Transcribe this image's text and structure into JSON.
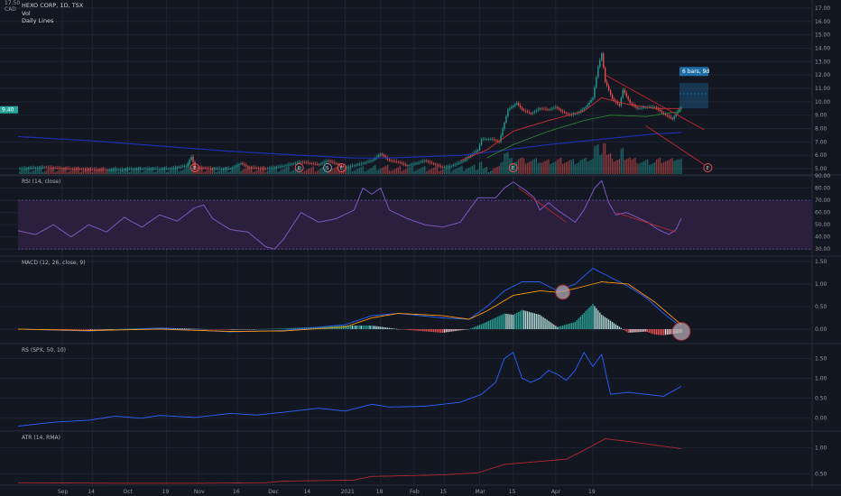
{
  "header": {
    "symbol": "HEXO CORP, 1D, TSX",
    "currency": "CAD",
    "top_price": "17.50",
    "vol_label": "Vol",
    "lines_label": "Daily Lines",
    "price_tag": "9.40",
    "projection_label": "6 bars, 9d",
    "earnings_marker": "E",
    "split_marker": "S"
  },
  "chart_data": [
    {
      "type": "candlestick",
      "ylim": [
        4.6,
        17.6
      ],
      "yticks": [
        5,
        6,
        7,
        8,
        9,
        10,
        11,
        12,
        13,
        14,
        15,
        16,
        17
      ],
      "ytick_labels": [
        "5.00",
        "6.00",
        "7.00",
        "8.00",
        "9.00",
        "10.00",
        "11.00",
        "12.00",
        "13.00",
        "14.00",
        "15.00",
        "16.00",
        "17.00"
      ],
      "close_anchors": [
        [
          0,
          5.0
        ],
        [
          15,
          5.1
        ],
        [
          30,
          5.0
        ],
        [
          50,
          4.9
        ],
        [
          70,
          5.0
        ],
        [
          85,
          5.0
        ],
        [
          95,
          5.2
        ],
        [
          98,
          5.9
        ],
        [
          100,
          5.1
        ],
        [
          110,
          5.0
        ],
        [
          120,
          5.0
        ],
        [
          126,
          5.4
        ],
        [
          130,
          5.1
        ],
        [
          140,
          5.0
        ],
        [
          150,
          5.2
        ],
        [
          160,
          5.5
        ],
        [
          170,
          5.3
        ],
        [
          175,
          5.6
        ],
        [
          185,
          5.1
        ],
        [
          192,
          5.3
        ],
        [
          200,
          5.6
        ],
        [
          205,
          6.1
        ],
        [
          210,
          5.6
        ],
        [
          215,
          5.5
        ],
        [
          220,
          5.2
        ],
        [
          230,
          5.6
        ],
        [
          240,
          5.1
        ],
        [
          245,
          5.2
        ],
        [
          252,
          5.6
        ],
        [
          260,
          6.4
        ],
        [
          262,
          7.2
        ],
        [
          268,
          7.2
        ],
        [
          272,
          7.0
        ],
        [
          277,
          9.4
        ],
        [
          282,
          9.9
        ],
        [
          285,
          9.4
        ],
        [
          290,
          9.1
        ],
        [
          295,
          9.5
        ],
        [
          300,
          9.4
        ],
        [
          304,
          9.6
        ],
        [
          307,
          9.3
        ],
        [
          312,
          9.0
        ],
        [
          317,
          9.2
        ],
        [
          321,
          9.6
        ],
        [
          325,
          10.3
        ],
        [
          328,
          12.6
        ],
        [
          330,
          13.6
        ],
        [
          332,
          11.5
        ],
        [
          336,
          10.2
        ],
        [
          340,
          9.7
        ],
        [
          342,
          10.9
        ],
        [
          346,
          9.9
        ],
        [
          350,
          9.5
        ],
        [
          356,
          9.6
        ],
        [
          360,
          9.6
        ],
        [
          365,
          9.1
        ],
        [
          370,
          8.7
        ],
        [
          373,
          9.3
        ],
        [
          375,
          9.6
        ]
      ],
      "sma_anchors": [
        [
          0,
          7.4
        ],
        [
          40,
          7.1
        ],
        [
          80,
          6.7
        ],
        [
          120,
          6.3
        ],
        [
          160,
          6.0
        ],
        [
          190,
          5.8
        ],
        [
          210,
          5.8
        ],
        [
          230,
          5.9
        ],
        [
          250,
          6.0
        ],
        [
          270,
          6.3
        ],
        [
          300,
          6.8
        ],
        [
          330,
          7.2
        ],
        [
          360,
          7.6
        ],
        [
          375,
          7.7
        ]
      ],
      "ema_red_anchors": [
        [
          250,
          5.6
        ],
        [
          265,
          6.4
        ],
        [
          280,
          7.8
        ],
        [
          300,
          8.6
        ],
        [
          320,
          9.3
        ],
        [
          330,
          10.3
        ],
        [
          345,
          9.8
        ],
        [
          360,
          9.5
        ],
        [
          375,
          9.5
        ]
      ],
      "ema_green_anchors": [
        [
          265,
          5.8
        ],
        [
          280,
          6.8
        ],
        [
          300,
          7.8
        ],
        [
          320,
          8.6
        ],
        [
          335,
          9.0
        ],
        [
          355,
          8.9
        ],
        [
          375,
          9.3
        ]
      ],
      "trend_lines": [
        [
          [
            332,
            12.0
          ],
          [
            388,
            7.9
          ]
        ],
        [
          [
            355,
            8.2
          ],
          [
            388,
            5.3
          ]
        ]
      ],
      "volume_max": 1.0
    },
    {
      "type": "line",
      "title": "RSI (14, close)",
      "ylim": [
        25,
        90
      ],
      "yticks": [
        30,
        40,
        50,
        60,
        70,
        80,
        90
      ],
      "ytick_labels": [
        "30.00",
        "40.00",
        "50.00",
        "60.00",
        "70.00",
        "80.00",
        "90.00"
      ],
      "band": [
        30,
        70
      ],
      "anchors": [
        [
          0,
          45
        ],
        [
          10,
          42
        ],
        [
          20,
          50
        ],
        [
          30,
          40
        ],
        [
          40,
          50
        ],
        [
          50,
          44
        ],
        [
          60,
          56
        ],
        [
          70,
          48
        ],
        [
          80,
          58
        ],
        [
          90,
          53
        ],
        [
          100,
          64
        ],
        [
          105,
          66
        ],
        [
          110,
          55
        ],
        [
          120,
          46
        ],
        [
          130,
          44
        ],
        [
          140,
          32
        ],
        [
          145,
          30
        ],
        [
          150,
          38
        ],
        [
          160,
          60
        ],
        [
          170,
          52
        ],
        [
          180,
          55
        ],
        [
          190,
          62
        ],
        [
          195,
          80
        ],
        [
          200,
          75
        ],
        [
          205,
          80
        ],
        [
          210,
          62
        ],
        [
          220,
          55
        ],
        [
          230,
          50
        ],
        [
          240,
          48
        ],
        [
          250,
          52
        ],
        [
          260,
          72
        ],
        [
          270,
          72
        ],
        [
          275,
          80
        ],
        [
          280,
          85
        ],
        [
          287,
          78
        ],
        [
          292,
          72
        ],
        [
          295,
          62
        ],
        [
          300,
          68
        ],
        [
          305,
          62
        ],
        [
          310,
          57
        ],
        [
          315,
          52
        ],
        [
          320,
          62
        ],
        [
          326,
          80
        ],
        [
          330,
          86
        ],
        [
          334,
          68
        ],
        [
          338,
          58
        ],
        [
          344,
          60
        ],
        [
          350,
          56
        ],
        [
          356,
          52
        ],
        [
          362,
          46
        ],
        [
          368,
          42
        ],
        [
          372,
          46
        ],
        [
          375,
          55
        ]
      ]
    },
    {
      "type": "line",
      "title": "MACD (12, 26, close, 9)",
      "ylim": [
        -0.3,
        1.6
      ],
      "yticks": [
        0,
        0.5,
        1.0,
        1.5
      ],
      "ytick_labels": [
        "0.00",
        "0.50",
        "1.00",
        "1.50"
      ],
      "macd_anchors": [
        [
          0,
          0.0
        ],
        [
          40,
          -0.04
        ],
        [
          80,
          0.02
        ],
        [
          120,
          -0.06
        ],
        [
          150,
          -0.03
        ],
        [
          185,
          0.1
        ],
        [
          200,
          0.3
        ],
        [
          215,
          0.35
        ],
        [
          240,
          0.25
        ],
        [
          255,
          0.22
        ],
        [
          265,
          0.5
        ],
        [
          275,
          0.85
        ],
        [
          285,
          1.05
        ],
        [
          295,
          1.05
        ],
        [
          305,
          0.85
        ],
        [
          315,
          1.0
        ],
        [
          325,
          1.35
        ],
        [
          335,
          1.15
        ],
        [
          345,
          0.95
        ],
        [
          355,
          0.7
        ],
        [
          365,
          0.35
        ],
        [
          375,
          0.05
        ]
      ],
      "signal_anchors": [
        [
          0,
          0.0
        ],
        [
          40,
          -0.03
        ],
        [
          80,
          0.0
        ],
        [
          120,
          -0.05
        ],
        [
          150,
          -0.04
        ],
        [
          185,
          0.05
        ],
        [
          200,
          0.25
        ],
        [
          215,
          0.35
        ],
        [
          240,
          0.3
        ],
        [
          255,
          0.22
        ],
        [
          265,
          0.4
        ],
        [
          280,
          0.75
        ],
        [
          295,
          0.85
        ],
        [
          305,
          0.82
        ],
        [
          315,
          0.9
        ],
        [
          330,
          1.05
        ],
        [
          345,
          1.0
        ],
        [
          360,
          0.6
        ],
        [
          375,
          0.1
        ]
      ],
      "circles": [
        [
          308,
          0.82
        ],
        [
          375,
          -0.05
        ]
      ]
    },
    {
      "type": "line",
      "title": "RS (SPX, 50, 10)",
      "ylim": [
        -0.3,
        1.85
      ],
      "yticks": [
        0,
        0.5,
        1.0,
        1.5
      ],
      "ytick_labels": [
        "0.00",
        "0.50",
        "1.00",
        "1.50"
      ],
      "anchors": [
        [
          0,
          -0.2
        ],
        [
          20,
          -0.1
        ],
        [
          40,
          -0.05
        ],
        [
          55,
          0.05
        ],
        [
          70,
          0.0
        ],
        [
          80,
          0.07
        ],
        [
          100,
          0.02
        ],
        [
          120,
          0.12
        ],
        [
          135,
          0.08
        ],
        [
          150,
          0.15
        ],
        [
          170,
          0.25
        ],
        [
          185,
          0.18
        ],
        [
          200,
          0.35
        ],
        [
          210,
          0.28
        ],
        [
          230,
          0.3
        ],
        [
          250,
          0.4
        ],
        [
          262,
          0.6
        ],
        [
          270,
          0.9
        ],
        [
          275,
          1.5
        ],
        [
          280,
          1.65
        ],
        [
          285,
          1.0
        ],
        [
          290,
          0.9
        ],
        [
          295,
          1.0
        ],
        [
          300,
          1.2
        ],
        [
          305,
          1.1
        ],
        [
          310,
          0.95
        ],
        [
          315,
          1.2
        ],
        [
          320,
          1.65
        ],
        [
          325,
          1.3
        ],
        [
          330,
          1.6
        ],
        [
          335,
          0.6
        ],
        [
          345,
          0.65
        ],
        [
          355,
          0.6
        ],
        [
          365,
          0.55
        ],
        [
          375,
          0.8
        ]
      ]
    },
    {
      "type": "line",
      "title": "ATR (14, RMA)",
      "ylim": [
        0.3,
        1.3
      ],
      "yticks": [
        0.5,
        1.0
      ],
      "ytick_labels": [
        "0.50",
        "1.00"
      ],
      "anchors": [
        [
          0,
          0.33
        ],
        [
          60,
          0.32
        ],
        [
          100,
          0.32
        ],
        [
          140,
          0.33
        ],
        [
          150,
          0.36
        ],
        [
          190,
          0.38
        ],
        [
          200,
          0.45
        ],
        [
          240,
          0.48
        ],
        [
          260,
          0.52
        ],
        [
          275,
          0.68
        ],
        [
          310,
          0.78
        ],
        [
          320,
          0.95
        ],
        [
          332,
          1.17
        ],
        [
          345,
          1.12
        ],
        [
          360,
          1.05
        ],
        [
          375,
          0.98
        ]
      ]
    }
  ],
  "x_axis": {
    "ticks": [
      {
        "i": 25,
        "label": "Sep"
      },
      {
        "i": 42,
        "label": "14"
      },
      {
        "i": 62,
        "label": "Oct"
      },
      {
        "i": 84,
        "label": "19"
      },
      {
        "i": 102,
        "label": "Nov"
      },
      {
        "i": 124,
        "label": "16"
      },
      {
        "i": 144,
        "label": "Dec"
      },
      {
        "i": 164,
        "label": "14"
      },
      {
        "i": 185,
        "label": "2021"
      },
      {
        "i": 205,
        "label": "18"
      },
      {
        "i": 224,
        "label": "Feb"
      },
      {
        "i": 241,
        "label": "15"
      },
      {
        "i": 261,
        "label": "Mar"
      },
      {
        "i": 280,
        "label": "15"
      },
      {
        "i": 304,
        "label": "Apr"
      },
      {
        "i": 325,
        "label": "19"
      }
    ]
  },
  "colors": {
    "background": "#131722",
    "up": "#26a69a",
    "down": "#ef5350",
    "grid": "#1f2433",
    "rsi_line": "#7e57c2",
    "rsi_band": "#2a1f3d",
    "macd_line": "#2962ff",
    "signal_line": "#ff9800",
    "rs_line": "#2962ff",
    "atr_line": "#b22833",
    "sma_line": "#1e2fb0",
    "projection": "#1e6fa8"
  }
}
